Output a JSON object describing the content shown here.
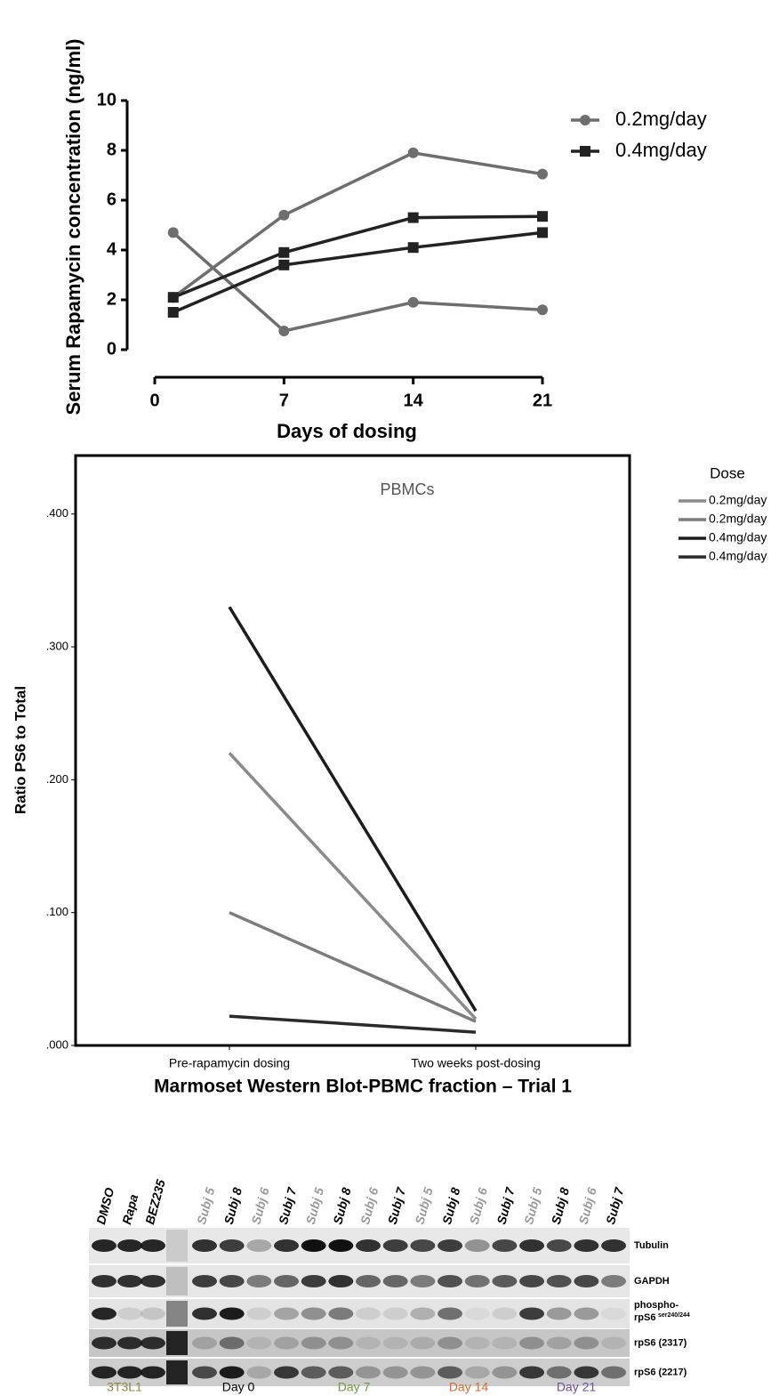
{
  "chart_data": [
    {
      "type": "line",
      "y_label": "Serum Rapamycin concentration (ng/ml)",
      "x_label": "Days of dosing",
      "x": [
        1,
        7,
        14,
        21
      ],
      "xlim": [
        0,
        21
      ],
      "xticks": [
        0,
        7,
        14,
        21
      ],
      "ylim": [
        0,
        10
      ],
      "yticks": [
        0,
        2,
        4,
        6,
        8,
        10
      ],
      "series": [
        {
          "name": "0.2mg/day",
          "color": "#6e6e6e",
          "marker": "circle",
          "values": [
            [
              4.7,
              0.75,
              1.9,
              1.6
            ],
            [
              2.1,
              5.4,
              7.9,
              7.05
            ]
          ]
        },
        {
          "name": "0.4mg/day",
          "color": "#222222",
          "marker": "square",
          "values": [
            [
              2.1,
              3.9,
              5.3,
              5.35
            ],
            [
              1.5,
              3.4,
              4.1,
              4.7
            ]
          ]
        }
      ]
    },
    {
      "type": "line",
      "title": "PBMCs",
      "y_label": "Ratio PS6 to Total",
      "legend_title": "Dose",
      "categories": [
        "Pre-rapamycin dosing",
        "Two weeks post-dosing"
      ],
      "ylim": [
        0,
        0.444
      ],
      "yticks": [
        {
          "value": 0,
          "label": ".000"
        },
        {
          "value": 0.1,
          "label": ".100"
        },
        {
          "value": 0.2,
          "label": ".200"
        },
        {
          "value": 0.3,
          "label": ".300"
        },
        {
          "value": 0.4,
          "label": ".400"
        }
      ],
      "series": [
        {
          "name": "0.2mg/day",
          "color": "#8a8a8a",
          "values": [
            0.22,
            0.02
          ]
        },
        {
          "name": "0.2mg/day",
          "color": "#7c7c7c",
          "values": [
            0.1,
            0.018
          ]
        },
        {
          "name": "0.4mg/day",
          "color": "#1c1c1c",
          "values": [
            0.33,
            0.026
          ]
        },
        {
          "name": "0.4mg/day",
          "color": "#2a2a2a",
          "values": [
            0.022,
            0.01
          ]
        }
      ]
    }
  ],
  "blot": {
    "title": "Marmoset Western Blot-PBMC fraction – Trial 1",
    "lanes": [
      {
        "label": "DMSO",
        "color": "#000000"
      },
      {
        "label": "Rapa",
        "color": "#000000"
      },
      {
        "label": "BEZ235",
        "color": "#000000"
      },
      {
        "label": "Subj 5",
        "color": "#9a9a9a"
      },
      {
        "label": "Subj 8",
        "color": "#000000"
      },
      {
        "label": "Subj 6",
        "color": "#9a9a9a"
      },
      {
        "label": "Subj 7",
        "color": "#000000"
      },
      {
        "label": "Subj 5",
        "color": "#9a9a9a"
      },
      {
        "label": "Subj 8",
        "color": "#000000"
      },
      {
        "label": "Subj 6",
        "color": "#9a9a9a"
      },
      {
        "label": "Subj 7",
        "color": "#000000"
      },
      {
        "label": "Subj 5",
        "color": "#9a9a9a"
      },
      {
        "label": "Subj 8",
        "color": "#000000"
      },
      {
        "label": "Subj 6",
        "color": "#9a9a9a"
      },
      {
        "label": "Subj 7",
        "color": "#000000"
      },
      {
        "label": "Subj 5",
        "color": "#9a9a9a"
      },
      {
        "label": "Subj 8",
        "color": "#000000"
      },
      {
        "label": "Subj 6",
        "color": "#9a9a9a"
      },
      {
        "label": "Subj 7",
        "color": "#000000"
      }
    ],
    "rows": [
      {
        "label": "Tubulin"
      },
      {
        "label": "GAPDH"
      },
      {
        "label": "phospho-",
        "label2": "rpS6",
        "sup": "ser240/244"
      },
      {
        "label": "rpS6 (2317)"
      },
      {
        "label": "rpS6 (2217)"
      }
    ],
    "groups": [
      {
        "label": "3T3L1",
        "color": "#8b8b3c"
      },
      {
        "label": "Day 0",
        "color": "#000000"
      },
      {
        "label": "Day 7",
        "color": "#6f9a3a"
      },
      {
        "label": "Day 14",
        "color": "#d9692a"
      },
      {
        "label": "Day 21",
        "color": "#6a4fa0"
      }
    ]
  }
}
